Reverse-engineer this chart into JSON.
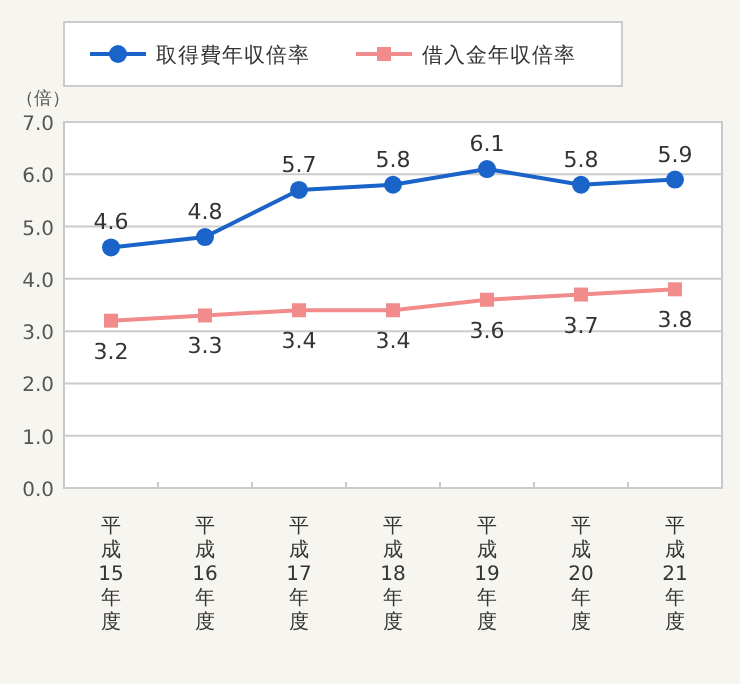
{
  "chart_data": {
    "type": "line",
    "ylabel": "（倍）",
    "categories": [
      "平成15年度",
      "平成16年度",
      "平成17年度",
      "平成18年度",
      "平成19年度",
      "平成20年度",
      "平成21年度"
    ],
    "series": [
      {
        "name": "取得費年収倍率",
        "color": "#1a63c9",
        "marker": "circle",
        "values": [
          4.6,
          4.8,
          5.7,
          5.8,
          6.1,
          5.8,
          5.9
        ]
      },
      {
        "name": "借入金年収倍率",
        "color": "#f28b8b",
        "marker": "square",
        "values": [
          3.2,
          3.3,
          3.4,
          3.4,
          3.6,
          3.7,
          3.8
        ]
      }
    ],
    "ylim": [
      0,
      7
    ],
    "yticks": [
      {
        "value": 0,
        "label": "0.0"
      },
      {
        "value": 1,
        "label": "1.0"
      },
      {
        "value": 2,
        "label": "2.0"
      },
      {
        "value": 3,
        "label": "3.0"
      },
      {
        "value": 4,
        "label": "4.0"
      },
      {
        "value": 5,
        "label": "5.0"
      },
      {
        "value": 6,
        "label": "6.0"
      },
      {
        "value": 7,
        "label": "7.0"
      }
    ],
    "grid": "y",
    "legend": "top",
    "data_labels": true
  }
}
